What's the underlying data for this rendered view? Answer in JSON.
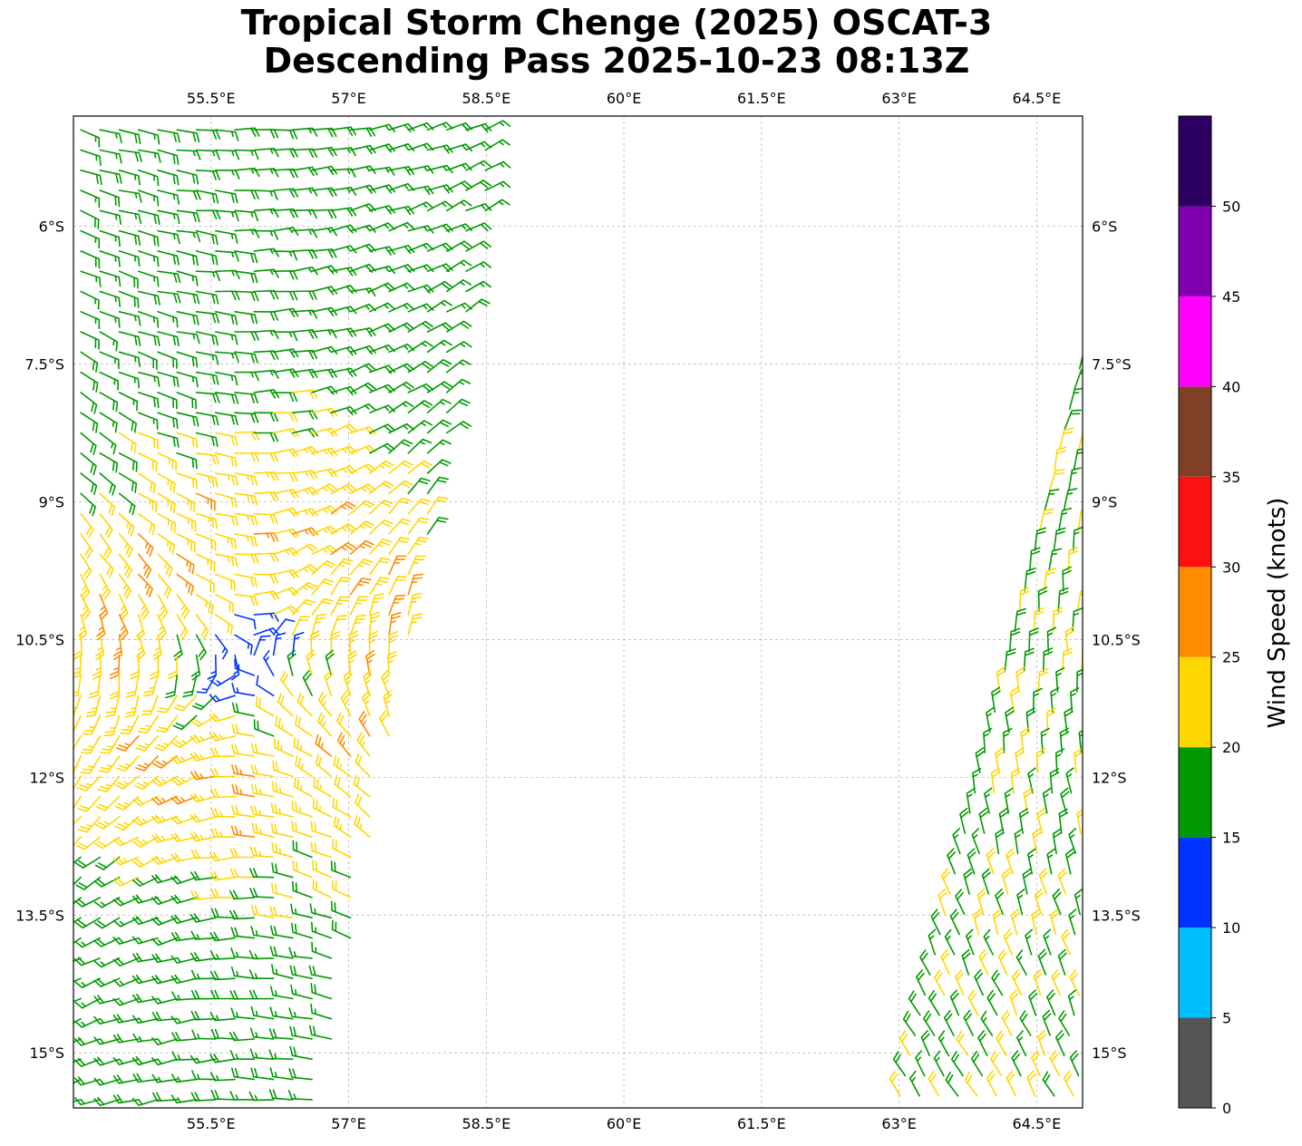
{
  "title": {
    "line1": "Tropical Storm Chenge (2025) OSCAT-3",
    "line2": "Descending Pass 2025-10-23 08:13Z"
  },
  "map": {
    "lon_range": [
      54.0,
      65.0
    ],
    "lat_range": [
      -4.8,
      -15.6
    ],
    "lon_ticks": [
      {
        "value": 55.5,
        "label": "55.5°E"
      },
      {
        "value": 57.0,
        "label": "57°E"
      },
      {
        "value": 58.5,
        "label": "58.5°E"
      },
      {
        "value": 60.0,
        "label": "60°E"
      },
      {
        "value": 61.5,
        "label": "61.5°E"
      },
      {
        "value": 63.0,
        "label": "63°E"
      },
      {
        "value": 64.5,
        "label": "64.5°E"
      }
    ],
    "lat_ticks": [
      {
        "value": -6.0,
        "label": "6°S"
      },
      {
        "value": -7.5,
        "label": "7.5°S"
      },
      {
        "value": -9.0,
        "label": "9°S"
      },
      {
        "value": -10.5,
        "label": "10.5°S"
      },
      {
        "value": -12.0,
        "label": "12°S"
      },
      {
        "value": -13.5,
        "label": "13.5°S"
      },
      {
        "value": -15.0,
        "label": "15°S"
      }
    ],
    "gridlines": true,
    "storm_center": {
      "lon": 55.9,
      "lat": -10.7
    }
  },
  "colorbar": {
    "label": "Wind Speed (knots)",
    "bins": [
      {
        "min": 0,
        "max": 5,
        "color": "#555555"
      },
      {
        "min": 5,
        "max": 10,
        "color": "#00bfff"
      },
      {
        "min": 10,
        "max": 15,
        "color": "#0033ff"
      },
      {
        "min": 15,
        "max": 20,
        "color": "#009900"
      },
      {
        "min": 20,
        "max": 25,
        "color": "#ffd700"
      },
      {
        "min": 25,
        "max": 30,
        "color": "#ff8c00"
      },
      {
        "min": 30,
        "max": 35,
        "color": "#ff1010"
      },
      {
        "min": 35,
        "max": 40,
        "color": "#804028"
      },
      {
        "min": 40,
        "max": 45,
        "color": "#ff00ff"
      },
      {
        "min": 45,
        "max": 50,
        "color": "#8000b0"
      },
      {
        "min": 50,
        "max": 55,
        "color": "#2b0060"
      }
    ],
    "tick_labels": [
      "0",
      "5",
      "10",
      "15",
      "20",
      "25",
      "30",
      "35",
      "40",
      "45",
      "50"
    ]
  },
  "swaths": [
    {
      "name": "west-swath",
      "top_lon_range": [
        54.0,
        58.7
      ],
      "top_lat": -4.9,
      "bottom_lon_range": [
        54.0,
        56.7
      ],
      "bottom_lat": -15.6
    },
    {
      "name": "east-swath",
      "top_lon_range": [
        64.9,
        65.0
      ],
      "top_lat": -7.5,
      "bottom_lon_range": [
        62.9,
        65.0
      ],
      "bottom_lat": -15.6
    }
  ]
}
